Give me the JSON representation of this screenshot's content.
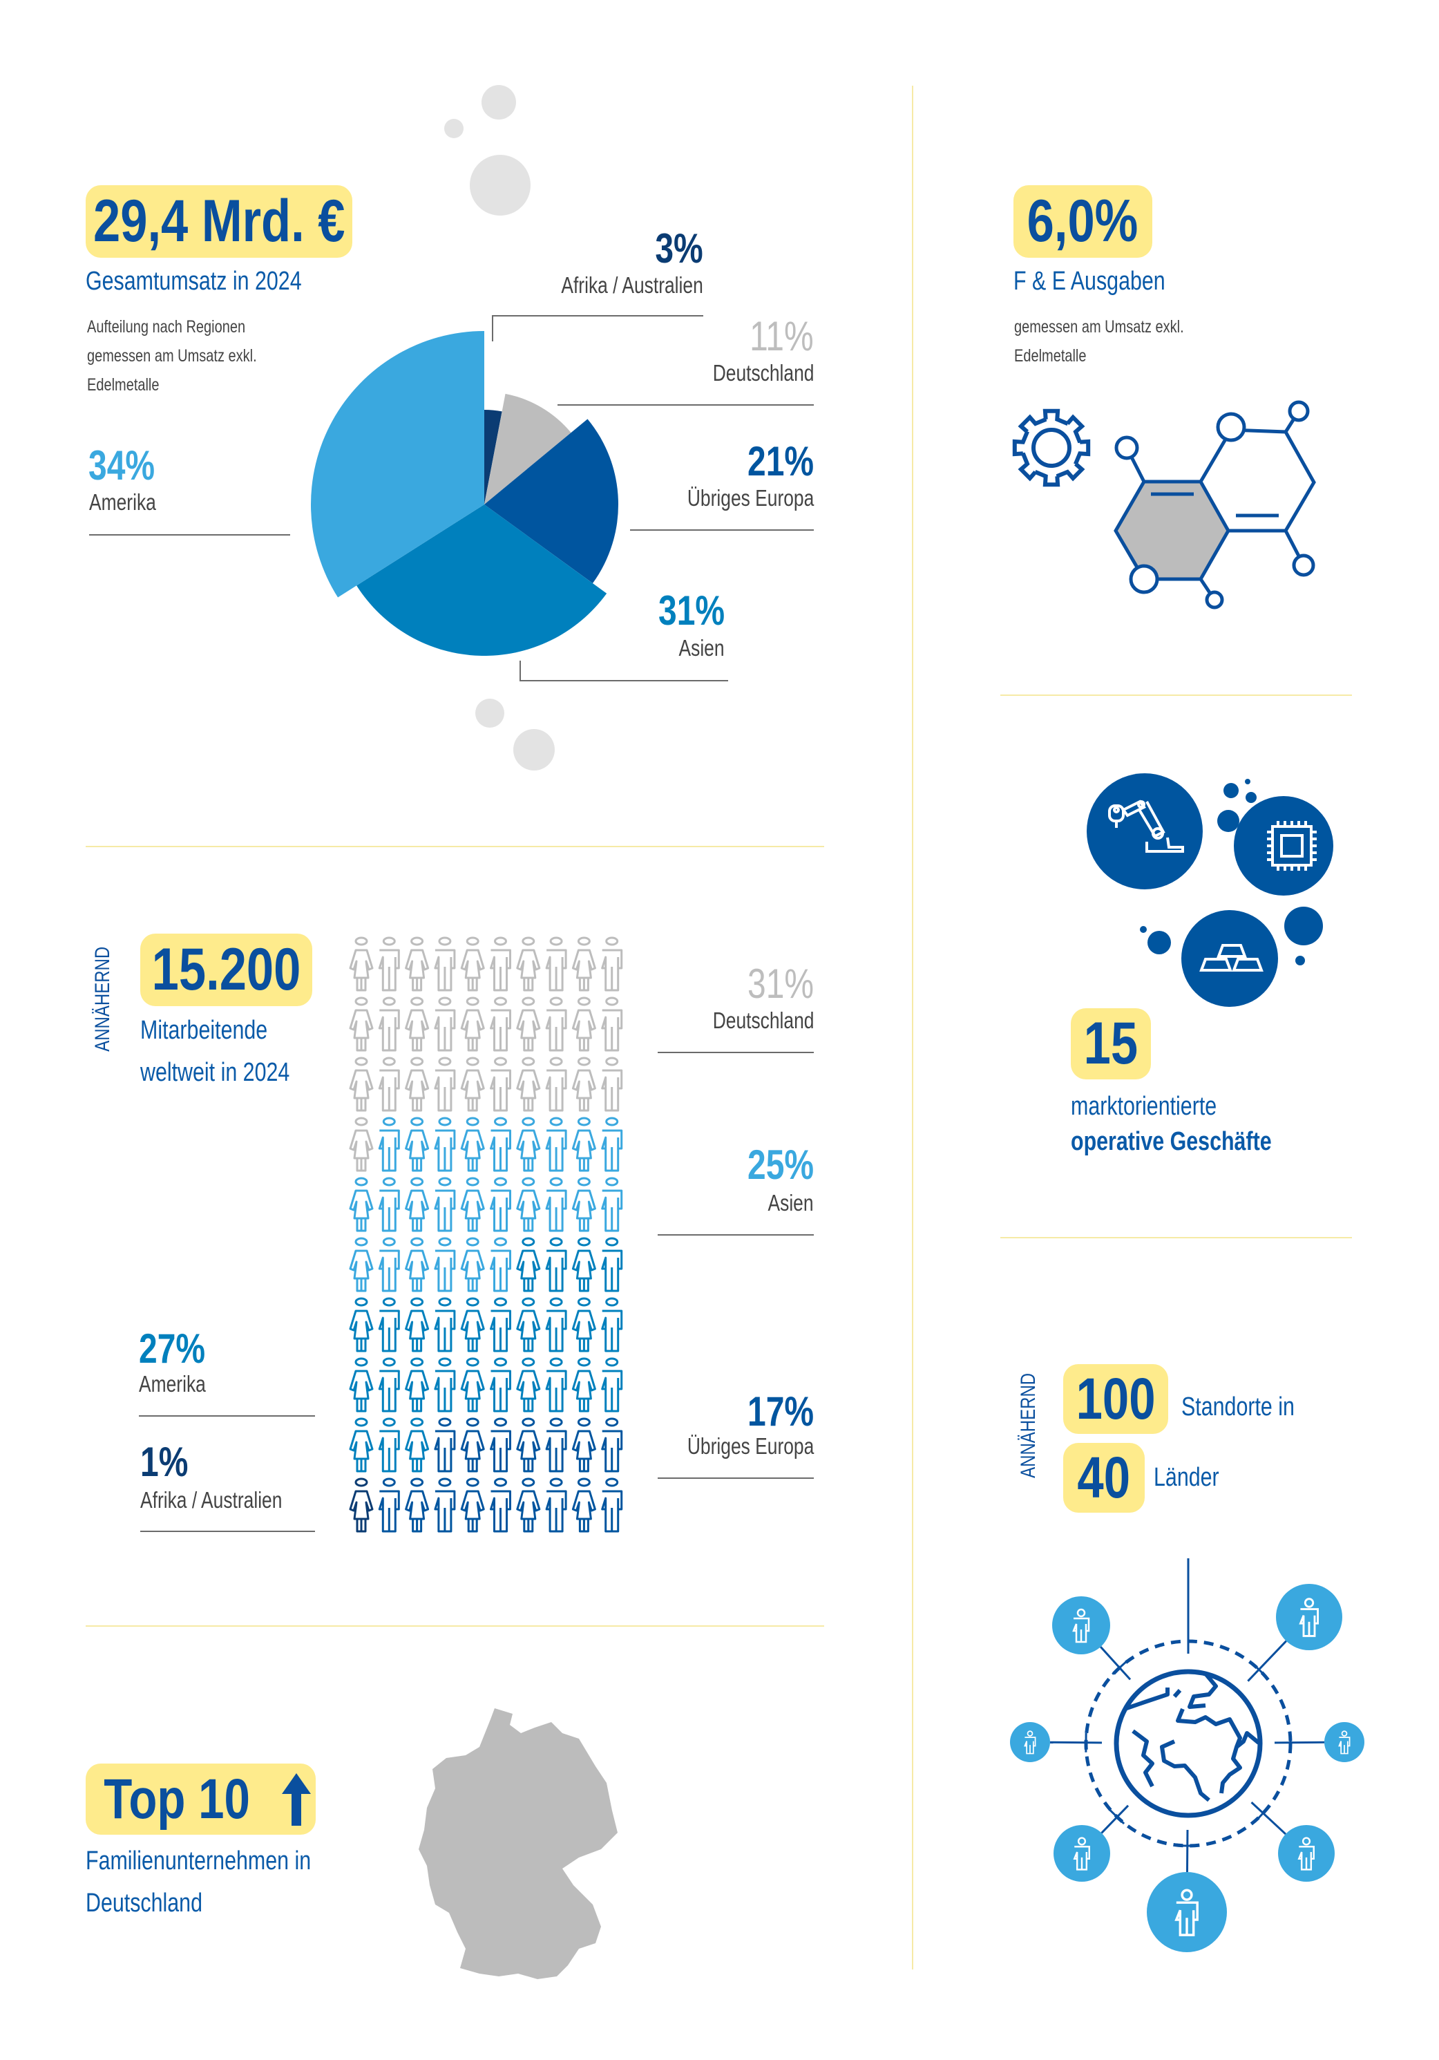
{
  "colors": {
    "yellow": "#feeb8c",
    "dark_blue": "#0a4f9e",
    "light_blue": "#3aa8df",
    "mid_blue": "#0080bd",
    "europe_blue": "#00559f",
    "navy": "#0b3c73",
    "gray": "#bdbdbd",
    "divider": "#f6eaa6"
  },
  "revenue": {
    "headline": "29,4 Mrd. €",
    "title": "Gesamtumsatz in 2024",
    "note_lines": [
      "Aufteilung nach Regionen",
      "gemessen am Umsatz exkl.",
      "Edelmetalle"
    ]
  },
  "employees": {
    "prefix": "ANNÄHERND",
    "headline": "15.200",
    "title_lines": [
      "Mitarbeitende",
      "weltweit in 2024"
    ]
  },
  "family": {
    "headline": "Top 10",
    "icon": "arrow-up-icon",
    "title_lines": [
      "Familienunternehmen in",
      "Deutschland"
    ],
    "map_icon": "germany-map"
  },
  "rnd": {
    "headline": "6,0%",
    "title": "F & E Ausgaben",
    "note_lines": [
      "gemessen am Umsatz exkl.",
      "Edelmetalle"
    ],
    "icons": [
      "gear-icon",
      "molecule-icon"
    ]
  },
  "businesses": {
    "headline": "15",
    "line1": "marktorientierte",
    "line2": "operative Geschäfte",
    "icons": [
      "robot-arm-icon",
      "microchip-icon",
      "gold-bars-icon"
    ]
  },
  "locations": {
    "prefix": "ANNÄHERND",
    "sites_value": "100",
    "sites_label": "Standorte in",
    "countries_value": "40",
    "countries_label": "Länder",
    "icon": "globe-network-icon"
  },
  "chart_data": [
    {
      "type": "pie",
      "title": "Gesamtumsatz in 2024",
      "unit": "%",
      "slices": [
        {
          "name": "Afrika / Australien",
          "value": 3,
          "label": "3%",
          "color": "#0b3c73"
        },
        {
          "name": "Deutschland",
          "value": 11,
          "label": "11%",
          "color": "#bdbdbd"
        },
        {
          "name": "Übriges Europa",
          "value": 21,
          "label": "21%",
          "color": "#00559f"
        },
        {
          "name": "Asien",
          "value": 31,
          "label": "31%",
          "color": "#0080bd"
        },
        {
          "name": "Amerika",
          "value": 34,
          "label": "34%",
          "color": "#3aa8df"
        }
      ]
    },
    {
      "type": "pictogram",
      "title": "Mitarbeitende weltweit in 2024",
      "unit": "%",
      "grid": [
        10,
        10
      ],
      "categories": [
        {
          "name": "Deutschland",
          "value": 31,
          "label": "31%",
          "color": "#bdbdbd"
        },
        {
          "name": "Asien",
          "value": 25,
          "label": "25%",
          "color": "#3aa8df"
        },
        {
          "name": "Amerika",
          "value": 27,
          "label": "27%",
          "color": "#0080bd"
        },
        {
          "name": "Übriges Europa",
          "value": 17,
          "label": "17%",
          "color": "#00559f"
        },
        {
          "name": "Afrika / Australien",
          "value": 1,
          "label": "1%",
          "color": "#0b3c73"
        }
      ]
    }
  ]
}
